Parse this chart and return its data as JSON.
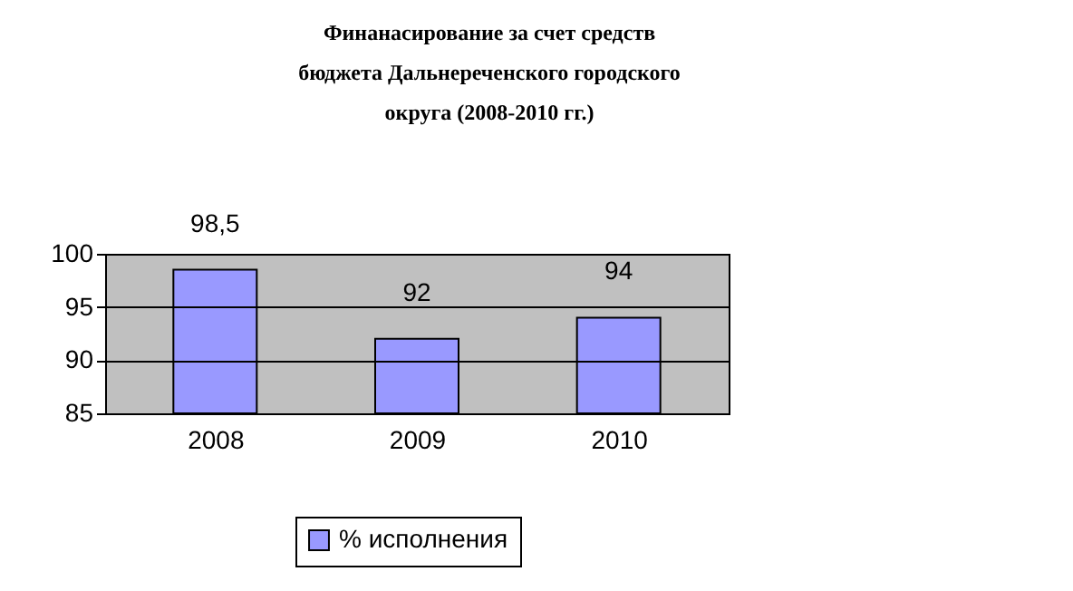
{
  "chart_data": {
    "type": "bar",
    "title": "Финанасирование за счет средств\nбюджета Дальнереченского городского\nокруга (2008-2010 гг.)",
    "categories": [
      "2008",
      "2009",
      "2010"
    ],
    "series": [
      {
        "name": "% исполнения",
        "color": "#9999ff",
        "values": [
          98.5,
          92,
          94
        ]
      }
    ],
    "value_labels": [
      "98,5",
      "92",
      "94"
    ],
    "ylim": [
      85,
      100
    ],
    "yticks": [
      85,
      90,
      95,
      100
    ],
    "grid": "y",
    "legend": "bottom"
  }
}
